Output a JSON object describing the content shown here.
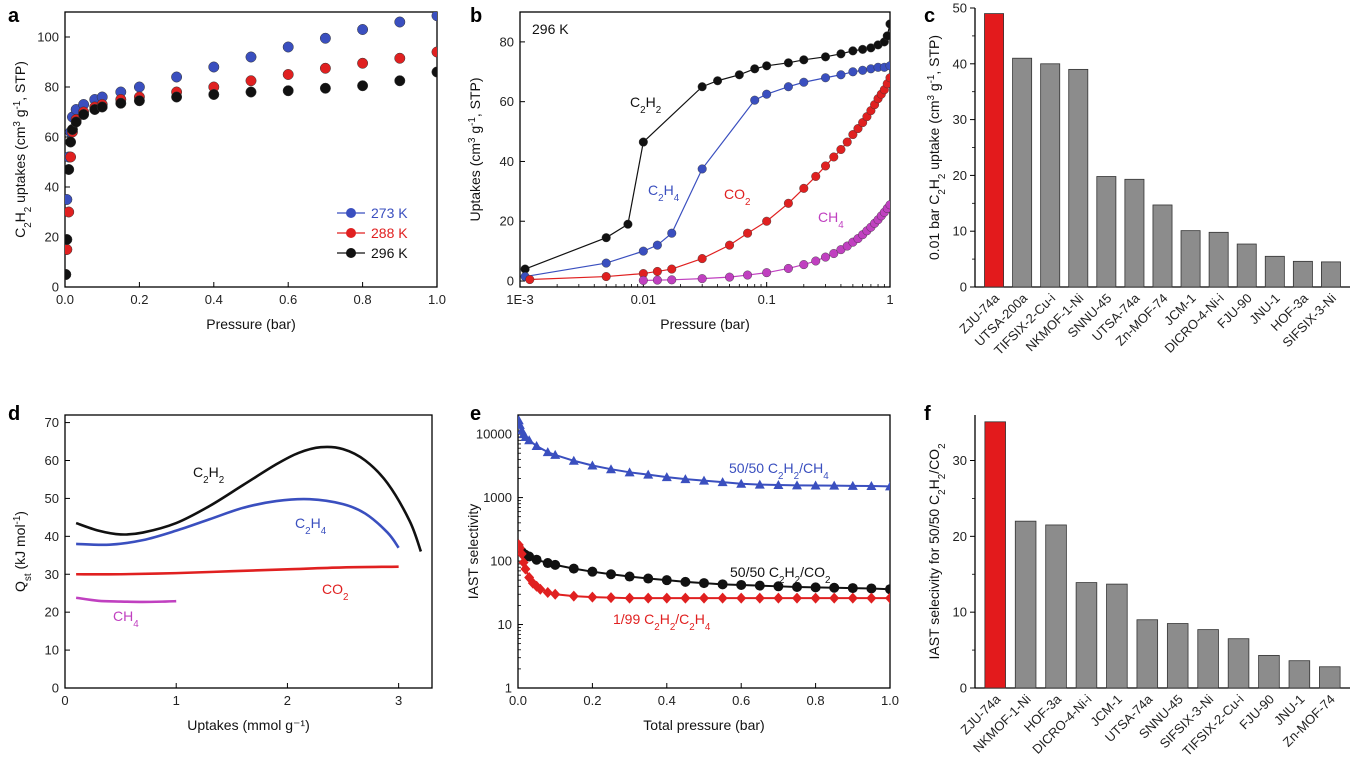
{
  "chart_data": [
    {
      "id": "a",
      "type": "scatter",
      "panel_label": "a",
      "xlabel": "Pressure (bar)",
      "ylabel": "C₂H₂ uptakes (cm³ g⁻¹, STP)",
      "xlim": [
        0,
        1.0
      ],
      "ylim": [
        0,
        110
      ],
      "xticks": [
        0.0,
        0.2,
        0.4,
        0.6,
        0.8,
        1.0
      ],
      "xtick_labels": [
        "0.0",
        "0.2",
        "0.4",
        "0.6",
        "0.8",
        "1.0"
      ],
      "yticks": [
        0,
        20,
        40,
        60,
        80,
        100
      ],
      "ytick_labels": [
        "0",
        "20",
        "40",
        "60",
        "80",
        "100"
      ],
      "legend_position": "lower-right",
      "series": [
        {
          "name": "273 K",
          "color": "#3a4fbf",
          "x": [
            0.002,
            0.005,
            0.01,
            0.015,
            0.02,
            0.03,
            0.05,
            0.08,
            0.1,
            0.15,
            0.2,
            0.3,
            0.4,
            0.5,
            0.6,
            0.7,
            0.8,
            0.9,
            1.0
          ],
          "y": [
            15,
            35,
            52,
            62,
            68,
            71,
            73,
            75,
            76,
            78,
            80,
            84,
            88,
            92,
            96,
            99.5,
            103,
            106,
            108.5
          ]
        },
        {
          "name": "288 K",
          "color": "#e02020",
          "x": [
            0.002,
            0.005,
            0.01,
            0.015,
            0.02,
            0.03,
            0.05,
            0.08,
            0.1,
            0.15,
            0.2,
            0.3,
            0.4,
            0.5,
            0.6,
            0.7,
            0.8,
            0.9,
            1.0
          ],
          "y": [
            5,
            15,
            30,
            52,
            62,
            67,
            70,
            72,
            73,
            75,
            76,
            78,
            80,
            82.5,
            85,
            87.5,
            89.5,
            91.5,
            94
          ]
        },
        {
          "name": "296 K",
          "color": "#111111",
          "x": [
            0.002,
            0.005,
            0.01,
            0.015,
            0.02,
            0.03,
            0.05,
            0.08,
            0.1,
            0.15,
            0.2,
            0.3,
            0.4,
            0.5,
            0.6,
            0.7,
            0.8,
            0.9,
            1.0
          ],
          "y": [
            5,
            19,
            47,
            58,
            63,
            66,
            69,
            71,
            72,
            73.5,
            74.5,
            76,
            77,
            78,
            78.5,
            79.5,
            80.5,
            82.5,
            86
          ]
        }
      ]
    },
    {
      "id": "b",
      "type": "line",
      "panel_label": "b",
      "xlabel": "Pressure (bar)",
      "ylabel": "Uptakes (cm³ g⁻¹, STP)",
      "xscale": "log",
      "xlim": [
        0.001,
        1
      ],
      "ylim": [
        -2,
        90
      ],
      "xticks": [
        0.001,
        0.01,
        0.1,
        1
      ],
      "xtick_labels": [
        "1E-3",
        "0.01",
        "0.1",
        "1"
      ],
      "yticks": [
        0,
        20,
        40,
        60,
        80
      ],
      "ytick_labels": [
        "0",
        "20",
        "40",
        "60",
        "80"
      ],
      "annotation": "296 K",
      "series": [
        {
          "name": "C₂H₂",
          "color": "#111111",
          "x": [
            0.0011,
            0.005,
            0.0075,
            0.01,
            0.03,
            0.04,
            0.06,
            0.08,
            0.1,
            0.15,
            0.2,
            0.3,
            0.4,
            0.5,
            0.6,
            0.7,
            0.8,
            0.9,
            0.95,
            1.0
          ],
          "y": [
            4,
            14.5,
            19,
            46.5,
            65,
            67,
            69,
            71,
            72,
            73,
            74,
            75,
            76,
            77,
            77.5,
            78,
            79,
            80,
            82,
            86
          ]
        },
        {
          "name": "C₂H₄",
          "color": "#3a4fbf",
          "x": [
            0.0011,
            0.005,
            0.01,
            0.013,
            0.017,
            0.03,
            0.08,
            0.1,
            0.15,
            0.2,
            0.3,
            0.4,
            0.5,
            0.6,
            0.7,
            0.8,
            0.9,
            1.0
          ],
          "y": [
            1.5,
            6,
            10,
            12,
            16,
            37.5,
            60.5,
            62.5,
            65,
            66.5,
            68,
            69,
            70,
            70.5,
            71,
            71.5,
            71.5,
            72
          ]
        },
        {
          "name": "CO₂",
          "color": "#e02020",
          "x": [
            0.0012,
            0.005,
            0.01,
            0.013,
            0.017,
            0.03,
            0.05,
            0.07,
            0.1,
            0.15,
            0.2,
            0.25,
            0.3,
            0.35,
            0.4,
            0.45,
            0.5,
            0.55,
            0.6,
            0.65,
            0.7,
            0.75,
            0.8,
            0.85,
            0.9,
            0.95,
            1.0
          ],
          "y": [
            0.5,
            1.5,
            2.5,
            3.2,
            4,
            7.5,
            12,
            16,
            20,
            26,
            31,
            35,
            38.5,
            41.5,
            44,
            46.5,
            49,
            51,
            53,
            55,
            57,
            59,
            61,
            62.5,
            64,
            66,
            68
          ]
        },
        {
          "name": "CH₄",
          "color": "#c040c0",
          "x": [
            0.01,
            0.013,
            0.017,
            0.03,
            0.05,
            0.07,
            0.1,
            0.15,
            0.2,
            0.25,
            0.3,
            0.35,
            0.4,
            0.45,
            0.5,
            0.55,
            0.6,
            0.65,
            0.7,
            0.75,
            0.8,
            0.85,
            0.9,
            0.95,
            1.0
          ],
          "y": [
            0.2,
            0.3,
            0.4,
            0.8,
            1.3,
            2,
            2.8,
            4.2,
            5.5,
            6.7,
            8,
            9.2,
            10.5,
            11.7,
            13,
            14.2,
            15.5,
            16.8,
            18,
            19.3,
            20.5,
            21.8,
            23,
            24.3,
            25.5
          ]
        }
      ]
    },
    {
      "id": "c",
      "type": "bar",
      "panel_label": "c",
      "ylabel": "0.01 bar C₂H₂ uptake (cm³ g⁻¹, STP)",
      "ylim": [
        0,
        50
      ],
      "yticks": [
        0,
        10,
        20,
        30,
        40,
        50
      ],
      "ytick_labels": [
        "0",
        "10",
        "20",
        "30",
        "40",
        "50"
      ],
      "categories": [
        "ZJU-74a",
        "UTSA-200a",
        "TIFSIX-2-Cu-i",
        "NKMOF-1-Ni",
        "SNNU-45",
        "UTSA-74a",
        "Zn-MOF-74",
        "JCM-1",
        "DICRO-4-Ni-i",
        "FJU-90",
        "JNU-1",
        "HOF-3a",
        "SIFSIX-3-Ni"
      ],
      "values": [
        49,
        41,
        40,
        39,
        19.8,
        19.3,
        14.7,
        10.1,
        9.8,
        7.7,
        5.5,
        4.6,
        4.5
      ],
      "highlight_color": "#e31a1c",
      "bar_color": "#8c8c8c"
    },
    {
      "id": "d",
      "type": "line",
      "panel_label": "d",
      "xlabel": "Uptakes (mmol g⁻¹)",
      "ylabel": "Qₛₜ (kJ mol⁻¹)",
      "xlim": [
        0,
        3.3
      ],
      "ylim": [
        0,
        72
      ],
      "xticks": [
        0,
        1,
        2,
        3
      ],
      "xtick_labels": [
        "0",
        "1",
        "2",
        "3"
      ],
      "yticks": [
        0,
        10,
        20,
        30,
        40,
        50,
        60,
        70
      ],
      "ytick_labels": [
        "0",
        "10",
        "20",
        "30",
        "40",
        "50",
        "60",
        "70"
      ],
      "series": [
        {
          "name": "C₂H₂",
          "color": "#111111",
          "x": [
            0.1,
            0.3,
            0.5,
            0.7,
            1.0,
            1.3,
            1.6,
            1.9,
            2.1,
            2.3,
            2.5,
            2.7,
            2.9,
            3.1,
            3.2
          ],
          "y": [
            43.5,
            41.5,
            40.5,
            41,
            43.5,
            48,
            53.5,
            59,
            62,
            63.5,
            63,
            60,
            54,
            44,
            36
          ]
        },
        {
          "name": "C₂H₄",
          "color": "#3a4fbf",
          "x": [
            0.1,
            0.4,
            0.7,
            1.0,
            1.3,
            1.6,
            1.9,
            2.2,
            2.5,
            2.7,
            2.9,
            3.0
          ],
          "y": [
            38,
            37.8,
            39,
            41.5,
            44.5,
            47.5,
            49.3,
            49.8,
            48.5,
            46,
            41,
            37
          ]
        },
        {
          "name": "CO₂",
          "color": "#e02020",
          "x": [
            0.1,
            0.5,
            1.0,
            1.5,
            2.0,
            2.5,
            3.0
          ],
          "y": [
            30,
            30,
            30.3,
            30.8,
            31.3,
            31.8,
            32
          ]
        },
        {
          "name": "CH₄",
          "color": "#c040c0",
          "x": [
            0.1,
            0.3,
            0.5,
            0.7,
            0.9,
            1.0
          ],
          "y": [
            23.8,
            23,
            22.8,
            22.7,
            22.8,
            22.9
          ]
        }
      ]
    },
    {
      "id": "e",
      "type": "scatter",
      "panel_label": "e",
      "xlabel": "Total pressure (bar)",
      "ylabel": "IAST selectivity",
      "yscale": "log",
      "xlim": [
        0,
        1.0
      ],
      "ylim": [
        1,
        20000
      ],
      "xticks": [
        0.0,
        0.2,
        0.4,
        0.6,
        0.8,
        1.0
      ],
      "xtick_labels": [
        "0.0",
        "0.2",
        "0.4",
        "0.6",
        "0.8",
        "1.0"
      ],
      "yticks": [
        1,
        10,
        100,
        1000,
        10000
      ],
      "ytick_labels": [
        "1",
        "10",
        "100",
        "1000",
        "10000"
      ],
      "series": [
        {
          "name": "50/50 C₂H₂/CH₄",
          "color": "#3a4fbf",
          "x": [
            0.002,
            0.005,
            0.01,
            0.015,
            0.02,
            0.03,
            0.05,
            0.08,
            0.1,
            0.15,
            0.2,
            0.25,
            0.3,
            0.35,
            0.4,
            0.45,
            0.5,
            0.55,
            0.6,
            0.65,
            0.7,
            0.75,
            0.8,
            0.85,
            0.9,
            0.95,
            1.0
          ],
          "y": [
            16500,
            14000,
            11500,
            10000,
            9000,
            8000,
            6500,
            5200,
            4700,
            3800,
            3200,
            2800,
            2500,
            2300,
            2100,
            1950,
            1850,
            1750,
            1650,
            1600,
            1580,
            1560,
            1550,
            1540,
            1530,
            1520,
            1500
          ]
        },
        {
          "name": "50/50 C₂H₂/CO₂",
          "color": "#111111",
          "x": [
            0.002,
            0.005,
            0.01,
            0.015,
            0.02,
            0.03,
            0.05,
            0.08,
            0.1,
            0.15,
            0.2,
            0.25,
            0.3,
            0.35,
            0.4,
            0.45,
            0.5,
            0.55,
            0.6,
            0.65,
            0.7,
            0.75,
            0.8,
            0.85,
            0.9,
            0.95,
            1.0
          ],
          "y": [
            160,
            150,
            140,
            130,
            125,
            118,
            105,
            93,
            87,
            76,
            68,
            62,
            57,
            53,
            50,
            47,
            45,
            43,
            42,
            41,
            40,
            39,
            38.5,
            38,
            37.5,
            37,
            36
          ]
        },
        {
          "name": "1/99 C₂H₂/C₂H₄",
          "color": "#e02020",
          "x": [
            0.002,
            0.005,
            0.01,
            0.015,
            0.02,
            0.03,
            0.04,
            0.05,
            0.06,
            0.08,
            0.1,
            0.15,
            0.2,
            0.25,
            0.3,
            0.35,
            0.4,
            0.45,
            0.5,
            0.55,
            0.6,
            0.65,
            0.7,
            0.75,
            0.8,
            0.85,
            0.9,
            0.95,
            1.0
          ],
          "y": [
            180,
            160,
            130,
            95,
            75,
            55,
            45,
            40,
            36,
            32,
            30,
            28,
            27,
            26.5,
            26,
            26,
            26,
            26,
            26,
            26,
            26,
            26,
            26,
            26,
            26,
            26,
            26,
            26,
            26
          ]
        }
      ]
    },
    {
      "id": "f",
      "type": "bar",
      "panel_label": "f",
      "ylabel": "IAST selecivity for 50/50 C₂H₂/CO₂",
      "ylim": [
        0,
        36
      ],
      "yticks": [
        0,
        10,
        20,
        30
      ],
      "ytick_labels": [
        "0",
        "10",
        "20",
        "30"
      ],
      "categories": [
        "ZJU-74a",
        "NKMOF-1-Ni",
        "HOF-3a",
        "DICRO-4-Ni-i",
        "JCM-1",
        "UTSA-74a",
        "SNNU-45",
        "SIFSIX-3-Ni",
        "TIFSIX-2-Cu-i",
        "FJU-90",
        "JNU-1",
        "Zn-MOF-74"
      ],
      "values": [
        35.1,
        22,
        21.5,
        13.9,
        13.7,
        9,
        8.5,
        7.7,
        6.5,
        4.3,
        3.6,
        2.8
      ],
      "highlight_color": "#e31a1c",
      "bar_color": "#8c8c8c"
    }
  ]
}
